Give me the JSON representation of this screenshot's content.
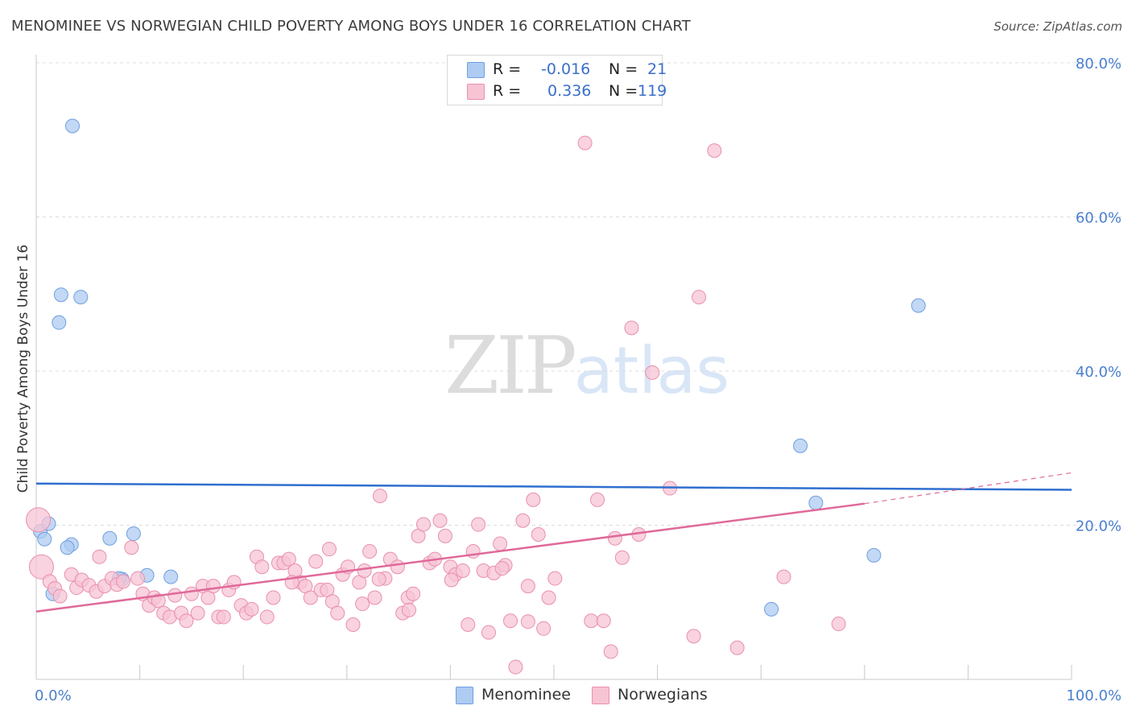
{
  "title": "MENOMINEE VS NORWEGIAN CHILD POVERTY AMONG BOYS UNDER 16 CORRELATION CHART",
  "source": "Source: ZipAtlas.com",
  "watermark": {
    "zip": "ZIP",
    "atlas": "atlas"
  },
  "legend": {
    "r_label": "R =",
    "n_label": "N =",
    "rows": [
      {
        "r": "-0.016",
        "n": "21",
        "color": "#aecbf2",
        "border": "#6f9fe0"
      },
      {
        "r": "0.336",
        "n": "119",
        "color": "#f7c4d4",
        "border": "#e98fae"
      }
    ]
  },
  "chart_data": {
    "type": "scatter",
    "title": "MENOMINEE VS NORWEGIAN CHILD POVERTY AMONG BOYS UNDER 16 CORRELATION CHART",
    "xlabel": "",
    "ylabel": "Child Poverty Among Boys Under 16",
    "xlim": [
      0,
      100
    ],
    "ylim": [
      0,
      80
    ],
    "x_tick_labels": [
      "0.0%",
      "100.0%"
    ],
    "y_ticks": [
      20,
      40,
      60,
      80
    ],
    "y_tick_labels": [
      "20.0%",
      "40.0%",
      "60.0%",
      "80.0%"
    ],
    "grid": true,
    "legend_position": "top-center",
    "series": [
      {
        "name": "Menominee",
        "color": "#aecbf2",
        "stroke": "#6f9fe0",
        "line_color": "#2f6fcf",
        "trend": {
          "x": [
            0,
            100
          ],
          "y": [
            25.4,
            24.6
          ]
        },
        "points": [
          [
            3.5,
            71.8
          ],
          [
            2.4,
            49.9
          ],
          [
            4.3,
            49.6
          ],
          [
            2.2,
            46.3
          ],
          [
            0.4,
            19.2
          ],
          [
            0.8,
            18.2
          ],
          [
            1.2,
            20.2
          ],
          [
            3.4,
            17.5
          ],
          [
            3.0,
            17.1
          ],
          [
            7.1,
            18.3
          ],
          [
            9.4,
            18.9
          ],
          [
            1.6,
            11.1
          ],
          [
            8.3,
            13.0
          ],
          [
            10.7,
            13.5
          ],
          [
            13.0,
            13.3
          ],
          [
            85.2,
            48.5
          ],
          [
            73.8,
            30.3
          ],
          [
            75.3,
            22.9
          ],
          [
            80.9,
            16.1
          ],
          [
            71.0,
            9.1
          ],
          [
            8.0,
            13.1
          ]
        ]
      },
      {
        "name": "Norwegians",
        "color": "#f7c4d4",
        "stroke": "#e98fae",
        "line_color": "#e0699a",
        "trend": {
          "x": [
            0,
            80
          ],
          "y": [
            8.8,
            22.8
          ]
        },
        "trend_dashed": {
          "x": [
            80,
            100
          ],
          "y": [
            22.8,
            26.8
          ]
        },
        "points": [
          [
            0.2,
            20.7
          ],
          [
            0.5,
            14.6
          ],
          [
            1.3,
            12.7
          ],
          [
            1.8,
            11.8
          ],
          [
            2.3,
            10.8
          ],
          [
            3.4,
            13.6
          ],
          [
            3.9,
            11.9
          ],
          [
            4.4,
            12.9
          ],
          [
            5.1,
            12.2
          ],
          [
            5.8,
            11.4
          ],
          [
            6.1,
            15.9
          ],
          [
            6.6,
            12.1
          ],
          [
            7.3,
            13.1
          ],
          [
            7.8,
            12.3
          ],
          [
            8.4,
            12.7
          ],
          [
            9.2,
            17.1
          ],
          [
            9.8,
            13.1
          ],
          [
            10.3,
            11.1
          ],
          [
            10.9,
            9.6
          ],
          [
            11.4,
            10.6
          ],
          [
            11.8,
            10.2
          ],
          [
            12.3,
            8.6
          ],
          [
            12.9,
            8.1
          ],
          [
            13.4,
            10.9
          ],
          [
            14.0,
            8.6
          ],
          [
            14.5,
            7.6
          ],
          [
            15.0,
            11.1
          ],
          [
            15.6,
            8.6
          ],
          [
            16.1,
            12.1
          ],
          [
            16.6,
            10.6
          ],
          [
            17.1,
            12.1
          ],
          [
            17.6,
            8.1
          ],
          [
            18.1,
            8.1
          ],
          [
            18.6,
            11.6
          ],
          [
            19.1,
            12.6
          ],
          [
            19.8,
            9.6
          ],
          [
            20.3,
            8.6
          ],
          [
            20.8,
            9.1
          ],
          [
            21.3,
            15.9
          ],
          [
            21.8,
            14.6
          ],
          [
            22.3,
            8.1
          ],
          [
            22.9,
            10.6
          ],
          [
            23.4,
            15.1
          ],
          [
            23.9,
            15.1
          ],
          [
            24.4,
            15.6
          ],
          [
            25.0,
            14.1
          ],
          [
            25.5,
            12.6
          ],
          [
            26.0,
            12.1
          ],
          [
            26.5,
            10.6
          ],
          [
            27.0,
            15.3
          ],
          [
            27.5,
            11.6
          ],
          [
            28.1,
            11.6
          ],
          [
            28.6,
            10.1
          ],
          [
            29.1,
            8.6
          ],
          [
            29.6,
            13.6
          ],
          [
            30.1,
            14.6
          ],
          [
            30.6,
            7.1
          ],
          [
            31.2,
            12.6
          ],
          [
            31.7,
            14.1
          ],
          [
            32.2,
            16.6
          ],
          [
            32.7,
            10.6
          ],
          [
            33.2,
            23.8
          ],
          [
            33.7,
            13.1
          ],
          [
            34.2,
            15.6
          ],
          [
            34.9,
            14.6
          ],
          [
            35.4,
            8.6
          ],
          [
            35.9,
            10.6
          ],
          [
            36.4,
            11.1
          ],
          [
            36.9,
            18.6
          ],
          [
            37.4,
            20.1
          ],
          [
            38.0,
            15.1
          ],
          [
            38.5,
            15.6
          ],
          [
            39.0,
            20.6
          ],
          [
            39.5,
            18.6
          ],
          [
            40.0,
            14.6
          ],
          [
            40.5,
            13.6
          ],
          [
            41.2,
            14.1
          ],
          [
            41.7,
            7.1
          ],
          [
            42.2,
            16.6
          ],
          [
            42.7,
            20.1
          ],
          [
            43.2,
            14.1
          ],
          [
            43.7,
            6.1
          ],
          [
            44.2,
            13.8
          ],
          [
            44.8,
            17.6
          ],
          [
            45.3,
            14.8
          ],
          [
            45.8,
            7.6
          ],
          [
            46.3,
            1.6
          ],
          [
            47.0,
            20.6
          ],
          [
            47.5,
            12.1
          ],
          [
            48.0,
            23.3
          ],
          [
            48.5,
            18.8
          ],
          [
            49.0,
            6.6
          ],
          [
            49.5,
            10.6
          ],
          [
            50.1,
            13.1
          ],
          [
            53.0,
            69.6
          ],
          [
            53.6,
            7.6
          ],
          [
            54.2,
            23.3
          ],
          [
            54.8,
            7.6
          ],
          [
            55.5,
            3.6
          ],
          [
            55.9,
            18.3
          ],
          [
            56.6,
            15.8
          ],
          [
            57.5,
            45.6
          ],
          [
            58.2,
            18.8
          ],
          [
            59.5,
            39.8
          ],
          [
            61.2,
            24.8
          ],
          [
            63.5,
            5.6
          ],
          [
            64.0,
            49.6
          ],
          [
            65.5,
            68.6
          ],
          [
            67.7,
            4.1
          ],
          [
            72.2,
            13.3
          ],
          [
            77.5,
            7.2
          ],
          [
            33.1,
            13.0
          ],
          [
            36.0,
            9.0
          ],
          [
            40.1,
            12.9
          ],
          [
            28.3,
            16.9
          ],
          [
            31.5,
            9.8
          ],
          [
            24.7,
            12.6
          ],
          [
            45.0,
            14.4
          ],
          [
            47.5,
            7.5
          ]
        ]
      }
    ]
  },
  "bottom_legend": [
    {
      "name": "Menominee"
    },
    {
      "name": "Norwegians"
    }
  ]
}
